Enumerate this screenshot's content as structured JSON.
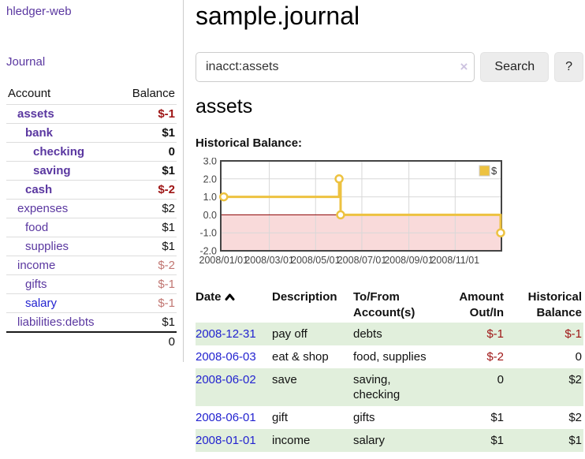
{
  "app": {
    "title": "hledger-web"
  },
  "nav": {
    "journal_label": "Journal"
  },
  "sidebar": {
    "header": {
      "account": "Account",
      "balance": "Balance"
    },
    "accounts": [
      {
        "label": "assets",
        "depth": 1,
        "bold": true,
        "balance": "$-1",
        "balance_style": "negative",
        "link_color": "purple"
      },
      {
        "label": "bank",
        "depth": 2,
        "bold": true,
        "balance": "$1",
        "balance_style": "normal",
        "link_color": "purple"
      },
      {
        "label": "checking",
        "depth": 3,
        "bold": true,
        "balance": "0",
        "balance_style": "normal",
        "link_color": "purple"
      },
      {
        "label": "saving",
        "depth": 3,
        "bold": true,
        "balance": "$1",
        "balance_style": "normal",
        "link_color": "purple"
      },
      {
        "label": "cash",
        "depth": 2,
        "bold": true,
        "balance": "$-2",
        "balance_style": "negative",
        "link_color": "purple"
      },
      {
        "label": "expenses",
        "depth": 1,
        "bold": false,
        "balance": "$2",
        "balance_style": "normal",
        "link_color": "purple"
      },
      {
        "label": "food",
        "depth": 2,
        "bold": false,
        "balance": "$1",
        "balance_style": "normal",
        "link_color": "purple"
      },
      {
        "label": "supplies",
        "depth": 2,
        "bold": false,
        "balance": "$1",
        "balance_style": "normal",
        "link_color": "purple"
      },
      {
        "label": "income",
        "depth": 1,
        "bold": false,
        "balance": "$-2",
        "balance_style": "negative-light",
        "link_color": "purple"
      },
      {
        "label": "gifts",
        "depth": 2,
        "bold": false,
        "balance": "$-1",
        "balance_style": "negative-light",
        "link_color": "purple"
      },
      {
        "label": "salary",
        "depth": 2,
        "bold": false,
        "balance": "$-1",
        "balance_style": "negative-light",
        "link_color": "blue"
      },
      {
        "label": "liabilities:debts",
        "depth": 1,
        "bold": false,
        "balance": "$1",
        "balance_style": "normal",
        "link_color": "purple"
      }
    ],
    "total": "0"
  },
  "main": {
    "title": "sample.journal",
    "search": {
      "value": "inacct:assets",
      "clear_icon": "×",
      "button_label": "Search",
      "help_label": "?"
    },
    "account_heading": "assets",
    "chart_heading": "Historical Balance:"
  },
  "chart_data": {
    "type": "line",
    "title": "Historical Balance",
    "step": true,
    "series": [
      {
        "name": "$",
        "color": "#edc240",
        "points": [
          [
            "2008-01-01",
            1
          ],
          [
            "2008-06-01",
            2
          ],
          [
            "2008-06-03",
            0
          ],
          [
            "2008-12-31",
            -1
          ]
        ]
      }
    ],
    "xlim": [
      "2007-12-28",
      "2009-01-01"
    ],
    "ylim": [
      -2.0,
      3.0
    ],
    "yticks": [
      3.0,
      2.0,
      1.0,
      0.0,
      -1.0,
      -2.0
    ],
    "xticks": [
      {
        "date": "2008-01-01",
        "label": "2008/01/01"
      },
      {
        "date": "2008-03-01",
        "label": "2008/03/01"
      },
      {
        "date": "2008-05-01",
        "label": "2008/05/01"
      },
      {
        "date": "2008-07-01",
        "label": "2008/07/01"
      },
      {
        "date": "2008-09-01",
        "label": "2008/09/01"
      },
      {
        "date": "2008-11-01",
        "label": "2008/11/01"
      }
    ],
    "grid": true,
    "legend": {
      "label": "$",
      "position": "top-right"
    },
    "negative_region_color": "#f9dada",
    "zero_line_color": "#8b0000"
  },
  "register": {
    "headers": {
      "date": "Date",
      "description": "Description",
      "accounts": "To/From Account(s)",
      "amount": "Amount Out/In",
      "balance": "Historical Balance"
    },
    "sort": {
      "column": "date",
      "direction": "ascending"
    },
    "rows": [
      {
        "date": "2008-12-31",
        "description": "pay off",
        "accounts": "debts",
        "amount": "$-1",
        "amount_negative": true,
        "balance": "$-1",
        "balance_negative": true
      },
      {
        "date": "2008-06-03",
        "description": "eat & shop",
        "accounts": "food, supplies",
        "amount": "$-2",
        "amount_negative": true,
        "balance": "0",
        "balance_negative": false
      },
      {
        "date": "2008-06-02",
        "description": "save",
        "accounts": "saving, checking",
        "amount": "0",
        "amount_negative": false,
        "balance": "$2",
        "balance_negative": false
      },
      {
        "date": "2008-06-01",
        "description": "gift",
        "accounts": "gifts",
        "amount": "$1",
        "amount_negative": false,
        "balance": "$2",
        "balance_negative": false
      },
      {
        "date": "2008-01-01",
        "description": "income",
        "accounts": "salary",
        "amount": "$1",
        "amount_negative": false,
        "balance": "$1",
        "balance_negative": false
      }
    ]
  },
  "colors": {
    "accent_purple": "#5a37a0",
    "link_blue": "#2323d0",
    "negative_strong": "#9e1414",
    "negative_light": "#c17672",
    "row_green": "#e1efdc",
    "series_gold": "#edc240",
    "negative_region_pink": "#f9dada",
    "zero_line_red": "#8b0000"
  }
}
